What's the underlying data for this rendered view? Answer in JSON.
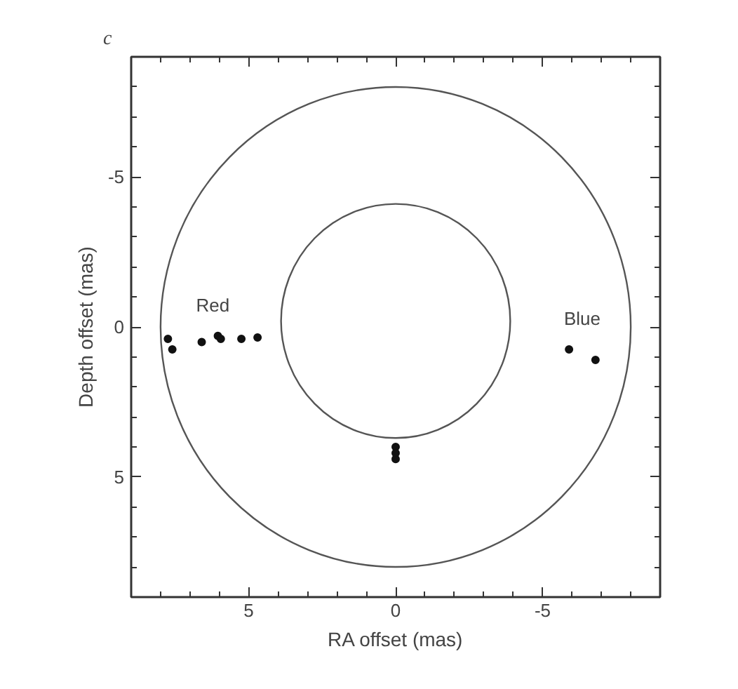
{
  "chart_data": {
    "type": "scatter",
    "title": "c",
    "xlabel": "RA offset (mas)",
    "ylabel": "Depth offset (mas)",
    "xlim": [
      9,
      -9
    ],
    "ylim": [
      9,
      -9
    ],
    "xticks": [
      {
        "value": 8,
        "label": null
      },
      {
        "value": 7,
        "label": null
      },
      {
        "value": 6,
        "label": null
      },
      5,
      {
        "value": 4,
        "label": null
      },
      {
        "value": 3,
        "label": null
      },
      {
        "value": 2,
        "label": null
      },
      {
        "value": 1,
        "label": null
      },
      0,
      {
        "value": -1,
        "label": null
      },
      {
        "value": -2,
        "label": null
      },
      {
        "value": -3,
        "label": null
      },
      {
        "value": -4,
        "label": null
      },
      -5,
      {
        "value": -6,
        "label": null
      },
      {
        "value": -7,
        "label": null
      },
      {
        "value": -8,
        "label": null
      }
    ],
    "yticks": [
      {
        "value": -8,
        "label": null
      },
      {
        "value": -7,
        "label": null
      },
      {
        "value": -6,
        "label": null
      },
      -5,
      {
        "value": -4,
        "label": null
      },
      {
        "value": -3,
        "label": null
      },
      {
        "value": -2,
        "label": null
      },
      {
        "value": -1,
        "label": null
      },
      0,
      {
        "value": 1,
        "label": null
      },
      {
        "value": 2,
        "label": null
      },
      {
        "value": 3,
        "label": null
      },
      {
        "value": 4,
        "label": null
      },
      5,
      {
        "value": 6,
        "label": null
      },
      {
        "value": 7,
        "label": null
      },
      {
        "value": 8,
        "label": null
      }
    ],
    "grid": false,
    "marker": "circle",
    "series": [
      {
        "name": "Red",
        "color": "#111111",
        "x": [
          7.75,
          7.6,
          6.6,
          6.05,
          5.95,
          5.25,
          4.7
        ],
        "values": [
          0.4,
          0.75,
          0.5,
          0.3,
          0.4,
          0.4,
          0.35
        ]
      },
      {
        "name": "Blue",
        "color": "#111111",
        "x": [
          -5.9,
          -6.8
        ],
        "values": [
          0.75,
          1.1
        ]
      },
      {
        "color": "#111111",
        "x": [
          0,
          0,
          0
        ],
        "values": [
          4.0,
          4.2,
          4.4
        ]
      }
    ]
  }
}
